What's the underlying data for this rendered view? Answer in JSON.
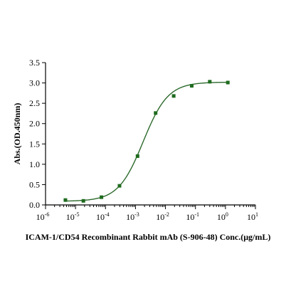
{
  "chart_data": {
    "type": "scatter",
    "xscale": "log",
    "xlim": [
      1e-06,
      10
    ],
    "ylim": [
      0,
      3.5
    ],
    "x_ticks": [
      {
        "value": 1e-06,
        "base": "10",
        "exp": "-6"
      },
      {
        "value": 1e-05,
        "base": "10",
        "exp": "-5"
      },
      {
        "value": 0.0001,
        "base": "10",
        "exp": "-4"
      },
      {
        "value": 0.001,
        "base": "10",
        "exp": "-3"
      },
      {
        "value": 0.01,
        "base": "10",
        "exp": "-2"
      },
      {
        "value": 0.1,
        "base": "10",
        "exp": "-1"
      },
      {
        "value": 1,
        "base": "10",
        "exp": "0"
      },
      {
        "value": 10,
        "base": "10",
        "exp": "1"
      }
    ],
    "y_ticks": [
      "0.0",
      "0.5",
      "1.0",
      "1.5",
      "2.0",
      "2.5",
      "3.0",
      "3.5"
    ],
    "xlabel": "ICAM-1/CD54 Recombinant Rabbit mAb (S-906-48) Conc.(μg/mL)",
    "ylabel": "Abs.(OD.450nm)",
    "color": "#1e6b1e",
    "series": [
      {
        "x": [
          4.6e-06,
          1.83e-05,
          7.32e-05,
          0.000293,
          0.00117,
          0.00469,
          0.0188,
          0.075,
          0.3,
          1.2
        ],
        "y": [
          0.12,
          0.1,
          0.19,
          0.47,
          1.2,
          2.26,
          2.68,
          2.93,
          3.03,
          3.01
        ]
      }
    ],
    "fit": {
      "bottom": 0.09,
      "top": 3.02,
      "ec50": 0.0018,
      "hill": 1.05
    }
  }
}
